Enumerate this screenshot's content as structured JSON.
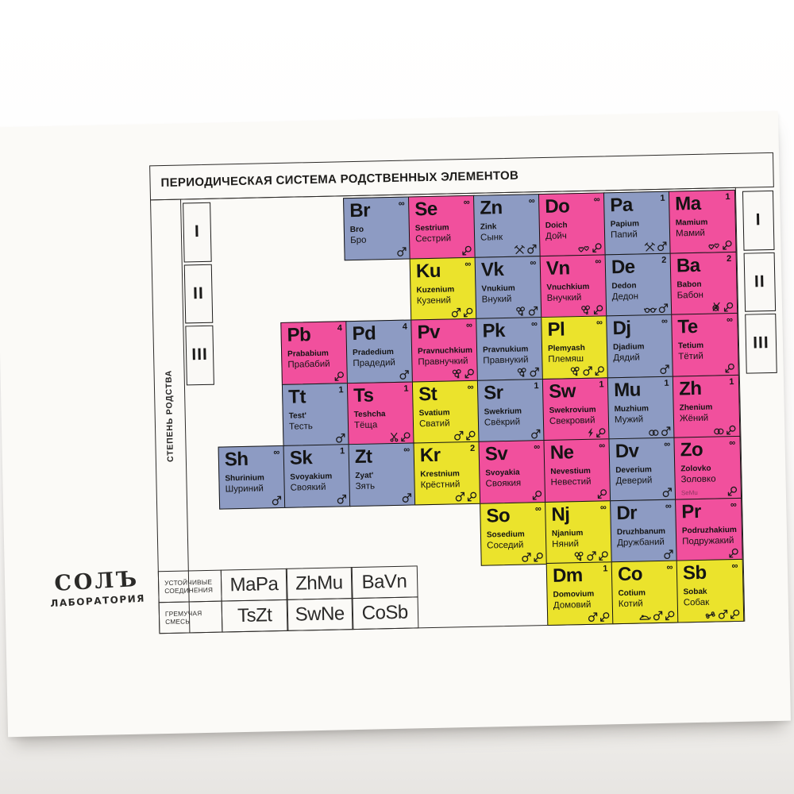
{
  "title": "ПЕРИОДИЧЕСКАЯ СИСТЕМА РОДСТВЕННЫХ ЭЛЕМЕНТОВ",
  "side_label": "СТЕПЕНЬ РОДСТВА",
  "logo": {
    "name": "СОЛЪ",
    "subtitle": "ЛАБОРАТОРИЯ"
  },
  "period_numerals": [
    "I",
    "II",
    "III"
  ],
  "colors": {
    "male_blue": "#8d9bc3",
    "female_pink": "#f1509d",
    "neutral_yellow": "#ebe32c",
    "card_background": "#fbfaf7",
    "cell_border": "#151515"
  },
  "legend_rows": [
    {
      "label_line1": "УСТОЙЧИВЫЕ",
      "label_line2": "СОЕДИНЕНИЯ",
      "compounds": [
        "MaPa",
        "ZhMu",
        "BaVn"
      ]
    },
    {
      "label_line1": "ГРЕМУЧАЯ",
      "label_line2": "СМЕСЬ",
      "compounds": [
        "TsZt",
        "SwNe",
        "CoSb"
      ]
    }
  ],
  "elements": [
    {
      "sym": "Br",
      "sup": "∞",
      "lat": "Bro",
      "cyr": "Бро",
      "color": "blue",
      "row": 0,
      "col": 2,
      "icons": [
        "male-symbol"
      ]
    },
    {
      "sym": "Se",
      "sup": "∞",
      "lat": "Sestrium",
      "cyr": "Сестрий",
      "color": "pink",
      "row": 0,
      "col": 3,
      "icons": [
        "female-loupe"
      ]
    },
    {
      "sym": "Zn",
      "sup": "∞",
      "lat": "Zink",
      "cyr": "Сынк",
      "color": "blue",
      "row": 0,
      "col": 4,
      "icons": [
        "crossed-tools",
        "male-symbol"
      ]
    },
    {
      "sym": "Do",
      "sup": "∞",
      "lat": "Doich",
      "cyr": "Дойч",
      "color": "pink",
      "row": 0,
      "col": 5,
      "icons": [
        "two-hearts",
        "female-loupe"
      ]
    },
    {
      "sym": "Pa",
      "sup": "1",
      "lat": "Papium",
      "cyr": "Папий",
      "color": "blue",
      "row": 0,
      "col": 6,
      "icons": [
        "crossed-tools",
        "male-symbol"
      ]
    },
    {
      "sym": "Ma",
      "sup": "1",
      "lat": "Mamium",
      "cyr": "Мамий",
      "color": "pink",
      "row": 0,
      "col": 7,
      "icons": [
        "two-hearts",
        "female-loupe"
      ]
    },
    {
      "sym": "Ku",
      "sup": "∞",
      "lat": "Kuzenium",
      "cyr": "Кузений",
      "color": "yellow",
      "row": 1,
      "col": 3,
      "icons": [
        "male-symbol",
        "female-loupe"
      ]
    },
    {
      "sym": "Vk",
      "sup": "∞",
      "lat": "Vnukium",
      "cyr": "Внукий",
      "color": "blue",
      "row": 1,
      "col": 4,
      "icons": [
        "balloons",
        "male-symbol"
      ]
    },
    {
      "sym": "Vn",
      "sup": "∞",
      "lat": "Vnuchkium",
      "cyr": "Внучкий",
      "color": "pink",
      "row": 1,
      "col": 5,
      "icons": [
        "balloons",
        "female-loupe"
      ]
    },
    {
      "sym": "De",
      "sup": "2",
      "lat": "Dedon",
      "cyr": "Дедон",
      "color": "blue",
      "row": 1,
      "col": 6,
      "icons": [
        "glasses",
        "male-symbol"
      ]
    },
    {
      "sym": "Ba",
      "sup": "2",
      "lat": "Babon",
      "cyr": "Бабон",
      "color": "pink",
      "row": 1,
      "col": 7,
      "icons": [
        "yarn-ball",
        "female-loupe"
      ]
    },
    {
      "sym": "Pb",
      "sup": "4",
      "lat": "Prababium",
      "cyr": "Прабабий",
      "color": "pink",
      "row": 2,
      "col": 1,
      "icons": [
        "female-loupe"
      ]
    },
    {
      "sym": "Pd",
      "sup": "4",
      "lat": "Pradedium",
      "cyr": "Прадедий",
      "color": "blue",
      "row": 2,
      "col": 2,
      "icons": [
        "male-symbol"
      ]
    },
    {
      "sym": "Pv",
      "sup": "∞",
      "lat": "Pravnuchkium",
      "cyr": "Правнучкий",
      "color": "pink",
      "row": 2,
      "col": 3,
      "icons": [
        "balloons",
        "female-loupe"
      ]
    },
    {
      "sym": "Pk",
      "sup": "∞",
      "lat": "Pravnukium",
      "cyr": "Правнукий",
      "color": "blue",
      "row": 2,
      "col": 4,
      "icons": [
        "balloons",
        "male-symbol"
      ]
    },
    {
      "sym": "Pl",
      "sup": "∞",
      "lat": "Plemyash",
      "cyr": "Племяш",
      "color": "yellow",
      "row": 2,
      "col": 5,
      "icons": [
        "balloons",
        "male-symbol",
        "female-loupe"
      ]
    },
    {
      "sym": "Dj",
      "sup": "∞",
      "lat": "Djadium",
      "cyr": "Дядий",
      "color": "blue",
      "row": 2,
      "col": 6,
      "icons": [
        "male-symbol"
      ]
    },
    {
      "sym": "Te",
      "sup": "∞",
      "lat": "Tetium",
      "cyr": "Тётий",
      "color": "pink",
      "row": 2,
      "col": 7,
      "icons": [
        "female-loupe"
      ]
    },
    {
      "sym": "Tt",
      "sup": "1",
      "lat": "Test'",
      "cyr": "Тесть",
      "color": "blue",
      "row": 3,
      "col": 1,
      "icons": [
        "male-symbol"
      ]
    },
    {
      "sym": "Ts",
      "sup": "1",
      "lat": "Teshcha",
      "cyr": "Тёща",
      "color": "pink",
      "row": 3,
      "col": 2,
      "icons": [
        "scissors",
        "female-loupe"
      ]
    },
    {
      "sym": "St",
      "sup": "∞",
      "lat": "Svatium",
      "cyr": "Сватий",
      "color": "yellow",
      "row": 3,
      "col": 3,
      "icons": [
        "male-symbol",
        "female-loupe"
      ]
    },
    {
      "sym": "Sr",
      "sup": "1",
      "lat": "Swekrium",
      "cyr": "Свёкрий",
      "color": "blue",
      "row": 3,
      "col": 4,
      "icons": [
        "male-symbol"
      ]
    },
    {
      "sym": "Sw",
      "sup": "1",
      "lat": "Swekrovium",
      "cyr": "Свекровий",
      "color": "pink",
      "row": 3,
      "col": 5,
      "icons": [
        "lightning",
        "female-loupe"
      ]
    },
    {
      "sym": "Mu",
      "sup": "1",
      "lat": "Muzhium",
      "cyr": "Мужий",
      "color": "blue",
      "row": 3,
      "col": 6,
      "icons": [
        "wedding-rings",
        "male-symbol"
      ]
    },
    {
      "sym": "Zh",
      "sup": "1",
      "lat": "Zhenium",
      "cyr": "Жёний",
      "color": "pink",
      "row": 3,
      "col": 7,
      "icons": [
        "wedding-rings",
        "female-loupe"
      ]
    },
    {
      "sym": "Sh",
      "sup": "∞",
      "lat": "Shurinium",
      "cyr": "Шуриний",
      "color": "blue",
      "row": 4,
      "col": 0,
      "icons": [
        "male-symbol"
      ]
    },
    {
      "sym": "Sk",
      "sup": "1",
      "lat": "Svoyakium",
      "cyr": "Своякий",
      "color": "blue",
      "row": 4,
      "col": 1,
      "icons": [
        "male-symbol"
      ]
    },
    {
      "sym": "Zt",
      "sup": "∞",
      "lat": "Zyat'",
      "cyr": "Зять",
      "color": "blue",
      "row": 4,
      "col": 2,
      "icons": [
        "male-symbol"
      ]
    },
    {
      "sym": "Kr",
      "sup": "2",
      "lat": "Krestnium",
      "cyr": "Крёстний",
      "color": "yellow",
      "row": 4,
      "col": 3,
      "icons": [
        "male-symbol",
        "female-loupe"
      ]
    },
    {
      "sym": "Sv",
      "sup": "∞",
      "lat": "Svoyakia",
      "cyr": "Своякия",
      "color": "pink",
      "row": 4,
      "col": 4,
      "icons": [
        "female-loupe"
      ]
    },
    {
      "sym": "Ne",
      "sup": "∞",
      "lat": "Nevestium",
      "cyr": "Невестий",
      "color": "pink",
      "row": 4,
      "col": 5,
      "icons": [
        "female-loupe"
      ]
    },
    {
      "sym": "Dv",
      "sup": "∞",
      "lat": "Deverium",
      "cyr": "Деверий",
      "color": "blue",
      "row": 4,
      "col": 6,
      "icons": [
        "male-symbol"
      ]
    },
    {
      "sym": "Zo",
      "sup": "∞",
      "lat": "Zolovko",
      "cyr": "Золовко",
      "color": "pink",
      "row": 4,
      "col": 7,
      "icons": [
        "female-loupe"
      ],
      "note": "SeMu"
    },
    {
      "sym": "So",
      "sup": "∞",
      "lat": "Sosedium",
      "cyr": "Соседий",
      "color": "yellow",
      "row": 5,
      "col": 4,
      "icons": [
        "male-symbol",
        "female-loupe"
      ]
    },
    {
      "sym": "Nj",
      "sup": "∞",
      "lat": "Njanium",
      "cyr": "Няний",
      "color": "yellow",
      "row": 5,
      "col": 5,
      "icons": [
        "balloons",
        "male-symbol",
        "female-loupe"
      ]
    },
    {
      "sym": "Dr",
      "sup": "∞",
      "lat": "Druzhbanum",
      "cyr": "Дружбаний",
      "color": "blue",
      "row": 5,
      "col": 6,
      "icons": [
        "male-symbol"
      ]
    },
    {
      "sym": "Pr",
      "sup": "∞",
      "lat": "Podruzhakium",
      "cyr": "Подружакий",
      "color": "pink",
      "row": 5,
      "col": 7,
      "icons": [
        "female-loupe"
      ]
    },
    {
      "sym": "Dm",
      "sup": "1",
      "lat": "Domovium",
      "cyr": "Домовий",
      "color": "yellow",
      "row": 6,
      "col": 5,
      "icons": [
        "male-symbol",
        "female-loupe"
      ]
    },
    {
      "sym": "Co",
      "sup": "∞",
      "lat": "Cotium",
      "cyr": "Котий",
      "color": "yellow",
      "row": 6,
      "col": 6,
      "icons": [
        "mouse",
        "male-symbol",
        "female-loupe"
      ]
    },
    {
      "sym": "Sb",
      "sup": "∞",
      "lat": "Sobak",
      "cyr": "Собак",
      "color": "yellow",
      "row": 6,
      "col": 7,
      "icons": [
        "bone",
        "male-symbol",
        "female-loupe"
      ]
    }
  ]
}
